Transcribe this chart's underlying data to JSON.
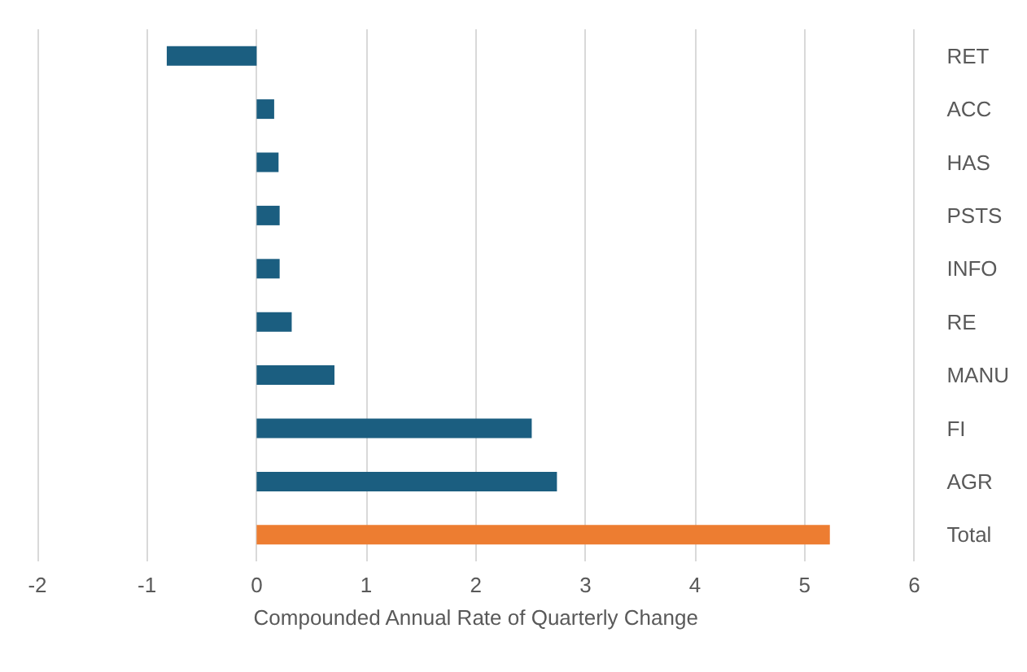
{
  "chart_data": {
    "type": "bar",
    "orientation": "horizontal",
    "xlabel": "Compounded Annual Rate of Quarterly Change",
    "categories": [
      "RET",
      "ACC",
      "HAS",
      "PSTS",
      "INFO",
      "RE",
      "MANU",
      "FI",
      "AGR",
      "Total"
    ],
    "values": [
      -0.82,
      0.16,
      0.2,
      0.21,
      0.21,
      0.32,
      0.71,
      2.51,
      2.74,
      5.23
    ],
    "colors": [
      "#1b5e80",
      "#1b5e80",
      "#1b5e80",
      "#1b5e80",
      "#1b5e80",
      "#1b5e80",
      "#1b5e80",
      "#1b5e80",
      "#1b5e80",
      "#ed7d31"
    ],
    "xlim": [
      -2,
      6
    ],
    "xticks": [
      -2,
      -1,
      0,
      1,
      2,
      3,
      4,
      5,
      6
    ],
    "grid": "x"
  }
}
